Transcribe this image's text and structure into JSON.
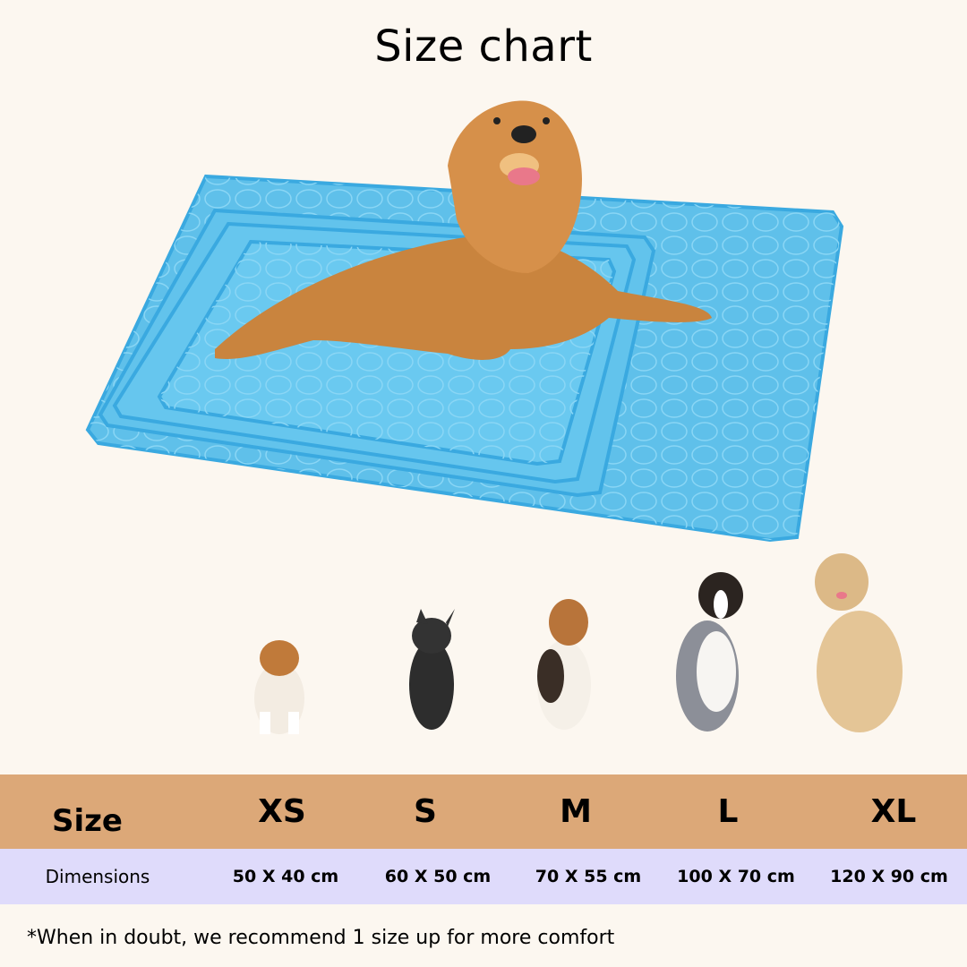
{
  "title": "Size chart",
  "table": {
    "header_label": "Size",
    "sizes": [
      "XS",
      "S",
      "M",
      "L",
      "XL"
    ],
    "row_label": "Dimensions",
    "dimensions": [
      "50 X 40 cm",
      "60 X 50 cm",
      "70 X 55 cm",
      "100 X 70 cm",
      "120 X 90 cm"
    ]
  },
  "note": "*When in doubt, we recommend 1 size up for more comfort",
  "colors": {
    "background": "#fcf7f0",
    "header_row": "#dca878",
    "dimension_row": "#dfdbfb",
    "mat": "#5fc0ea"
  }
}
